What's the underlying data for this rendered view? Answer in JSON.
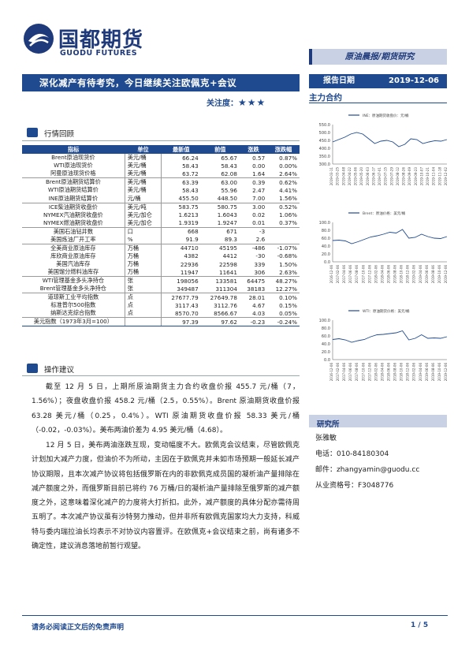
{
  "header": {
    "logo_cn": "国都期货",
    "logo_en": "GUODU FUTURES",
    "brand_bar": "原油晨报/期货研究",
    "title": "深化减产有待考究，今日继续关注欧佩克+会议",
    "attention_label": "关注度：",
    "attention_stars": "★★★",
    "date_label": "报告日期",
    "date_value": "2019-12-06",
    "contract_label": "主力合约"
  },
  "section_market": {
    "title": "行情回顾"
  },
  "table": {
    "headers": [
      "指标",
      "单位",
      "最新值",
      "前值",
      "涨跌",
      "涨跌幅"
    ],
    "rows": [
      {
        "name": "Brent原油现货价",
        "unit": "美元/桶",
        "latest": "66.24",
        "prev": "65.67",
        "chg": "0.57",
        "pct": "0.87%"
      },
      {
        "name": "WTI原油现货价",
        "unit": "美元/桶",
        "latest": "58.43",
        "prev": "58.43",
        "chg": "0.00",
        "pct": "0.00%"
      },
      {
        "name": "阿曼原油现货价格",
        "unit": "美元/桶",
        "latest": "63.72",
        "prev": "62.08",
        "chg": "1.64",
        "pct": "2.64%"
      },
      {
        "name": "Brent原油期货结算价",
        "unit": "美元/桶",
        "latest": "63.39",
        "prev": "63.00",
        "chg": "0.39",
        "pct": "0.62%"
      },
      {
        "name": "WTI原油期货结算价",
        "unit": "美元/桶",
        "latest": "58.43",
        "prev": "55.96",
        "chg": "2.47",
        "pct": "4.41%"
      },
      {
        "name": "INE原油期货结算价",
        "unit": "元/桶",
        "latest": "455.50",
        "prev": "448.50",
        "chg": "7.00",
        "pct": "1.56%"
      },
      {
        "name": "ICE柴油期货收盘价",
        "unit": "美元/吨",
        "latest": "583.75",
        "prev": "580.75",
        "chg": "3.00",
        "pct": "0.52%"
      },
      {
        "name": "NYMEX汽油期货收盘价",
        "unit": "美元/加仑",
        "latest": "1.6213",
        "prev": "1.6043",
        "chg": "0.02",
        "pct": "1.06%"
      },
      {
        "name": "NYMEX燃油期货收盘价",
        "unit": "美元/加仑",
        "latest": "1.9319",
        "prev": "1.9247",
        "chg": "0.01",
        "pct": "0.37%"
      },
      {
        "name": "美国石油钻井数",
        "unit": "口",
        "latest": "668",
        "prev": "671",
        "chg": "-3",
        "pct": ""
      },
      {
        "name": "美国炼油厂开工率",
        "unit": "%",
        "latest": "91.9",
        "prev": "89.3",
        "chg": "2.6",
        "pct": ""
      },
      {
        "name": "全美商业原油库存",
        "unit": "万桶",
        "latest": "44710",
        "prev": "45195",
        "chg": "-486",
        "pct": "-1.07%"
      },
      {
        "name": "库欣商业原油库存",
        "unit": "万桶",
        "latest": "4382",
        "prev": "4412",
        "chg": "-30",
        "pct": "-0.68%"
      },
      {
        "name": "美国汽油库存",
        "unit": "万桶",
        "latest": "22936",
        "prev": "22598",
        "chg": "339",
        "pct": "1.50%"
      },
      {
        "name": "美国馏分燃料油库存",
        "unit": "万桶",
        "latest": "11947",
        "prev": "11641",
        "chg": "306",
        "pct": "2.63%"
      },
      {
        "name": "WTI管理基金多头净持仓",
        "unit": "张",
        "latest": "198056",
        "prev": "133581",
        "chg": "64475",
        "pct": "48.27%"
      },
      {
        "name": "Brent管理基金多头净持仓",
        "unit": "张",
        "latest": "349487",
        "prev": "311304",
        "chg": "38183",
        "pct": "12.27%"
      },
      {
        "name": "道琼斯工业平均指数",
        "unit": "点",
        "latest": "27677.79",
        "prev": "27649.78",
        "chg": "28.01",
        "pct": "0.10%"
      },
      {
        "name": "标准普尔500指数",
        "unit": "点",
        "latest": "3117.43",
        "prev": "3112.76",
        "chg": "4.67",
        "pct": "0.15%"
      },
      {
        "name": "纳斯达克综合指数",
        "unit": "点",
        "latest": "8570.70",
        "prev": "8566.67",
        "chg": "4.03",
        "pct": "0.05%"
      },
      {
        "name": "美元指数（1973年3月=100）",
        "unit": "",
        "latest": "97.39",
        "prev": "97.62",
        "chg": "-0.23",
        "pct": "-0.24%"
      }
    ]
  },
  "section_advice": {
    "title": "操作建议"
  },
  "paragraphs": [
    "截至 12 月 5 日，上期所原油期货主力合约收盘价报 455.7 元/桶（7，1.56%）；夜盘收盘价报 458.2 元/桶（2.5，0.55%）。Brent 原油期货收盘价报 63.28 美元/桶（0.25，0.4%）。WTI 原油期货收盘价报 58.33 美元/桶（-0.02，-0.03%）。美布两油价差为 4.95 美元/桶（4.68）。",
    "12 月 5 日，美布两油涨跌互现，变动幅度不大。欧佩克会议结束，尽管欧佩克计划加大减产力度，但油价不为所动，主因在于欧佩克并未如市场预期一般延长减产协议期限，且本次减产协议将包括俄罗斯在内的非欧佩克成员国的凝析油产量排除在减产额度之外，而俄罗斯目前已将约 76 万桶/日的凝析油产量排除至俄罗斯的减产额度之外，这意味着深化减产的力度将大打折扣。此外，减产额度的具体分配亦需待周五明了。本次减产协议虽有沙特努力推动，但并非所有欧佩克国家均大力支持，科威特与委内瑞拉油长均表示不对协议内容置评。在欧佩克+会议结束之前，尚有诸多不确定性，建议消息落地前暂行观望。"
  ],
  "charts": [
    {
      "legend": "INE：原油期货收盘价：元/桶",
      "chart_data": {
        "type": "line",
        "yticks": [
          "550.0",
          "500.0",
          "450.0",
          "400.0",
          "350.0",
          "300.0"
        ],
        "ylim": [
          300,
          550
        ],
        "x": [
          "2019-03-11",
          "2019-03-25",
          "2019-04-08",
          "2019-04-22",
          "2019-05-06",
          "2019-05-20",
          "2019-06-03",
          "2019-06-17",
          "2019-07-01",
          "2019-07-15",
          "2019-07-29",
          "2019-08-12",
          "2019-08-26",
          "2019-09-09",
          "2019-09-23",
          "2019-10-07",
          "2019-10-21",
          "2019-11-04",
          "2019-11-18",
          "2019-12-02"
        ],
        "series": [
          {
            "values": [
              440,
              455,
              470,
              490,
              500,
              490,
              460,
              430,
              445,
              450,
              440,
              410,
              425,
              460,
              455,
              430,
              440,
              448,
              445,
              455
            ]
          }
        ]
      }
    },
    {
      "legend": "Brent：原油价格：美元/桶",
      "chart_data": {
        "type": "line",
        "yticks": [
          "100.0",
          "80.0",
          "60.0",
          "40.0",
          "20.0",
          "0.0"
        ],
        "ylim": [
          0,
          100
        ],
        "x": [
          "2016-12-06",
          "2017-02-06",
          "2017-04-06",
          "2017-06-06",
          "2017-08-06",
          "2017-10-06",
          "2017-12-06",
          "2018-02-06",
          "2018-04-06",
          "2018-06-06",
          "2018-08-06",
          "2018-10-06",
          "2018-12-06",
          "2019-02-06",
          "2019-04-06",
          "2019-06-06",
          "2019-08-06",
          "2019-10-06",
          "2019-12-06"
        ],
        "series": [
          {
            "values": [
              54,
              55,
              53,
              46,
              51,
              57,
              63,
              66,
              70,
              75,
              73,
              82,
              60,
              62,
              70,
              64,
              60,
              59,
              64
            ]
          }
        ]
      }
    },
    {
      "legend": "WTI：原油期货价格：美元/桶",
      "chart_data": {
        "type": "line",
        "yticks": [
          "100.0",
          "80.0",
          "60.0",
          "40.0",
          "20.0",
          "0.0"
        ],
        "ylim": [
          0,
          100
        ],
        "x": [
          "2016-12-06",
          "2017-02-06",
          "2017-04-06",
          "2017-06-06",
          "2017-08-06",
          "2017-10-06",
          "2017-12-06",
          "2018-02-06",
          "2018-04-06",
          "2018-06-06",
          "2018-08-06",
          "2018-10-06",
          "2018-12-06",
          "2019-02-06",
          "2019-04-06",
          "2019-06-06",
          "2019-08-06",
          "2019-10-06",
          "2019-12-06"
        ],
        "series": [
          {
            "values": [
              51,
              53,
              50,
              44,
              48,
              51,
              58,
              63,
              64,
              66,
              68,
              73,
              50,
              54,
              63,
              54,
              55,
              54,
              58
            ]
          }
        ]
      }
    }
  ],
  "research": {
    "head": "研究所",
    "name": "张雅敏",
    "phone": "电话：010-84180304",
    "email": "邮件：zhangyamin@guodu.cc",
    "license": "从业资格号：F3048776"
  },
  "footer": {
    "disclaimer": "请务必阅读正文后的免责声明",
    "page": "1 / 5"
  },
  "colors": {
    "brand_navy": "#1f4a8f",
    "light_blue": "#c8d2e4"
  }
}
